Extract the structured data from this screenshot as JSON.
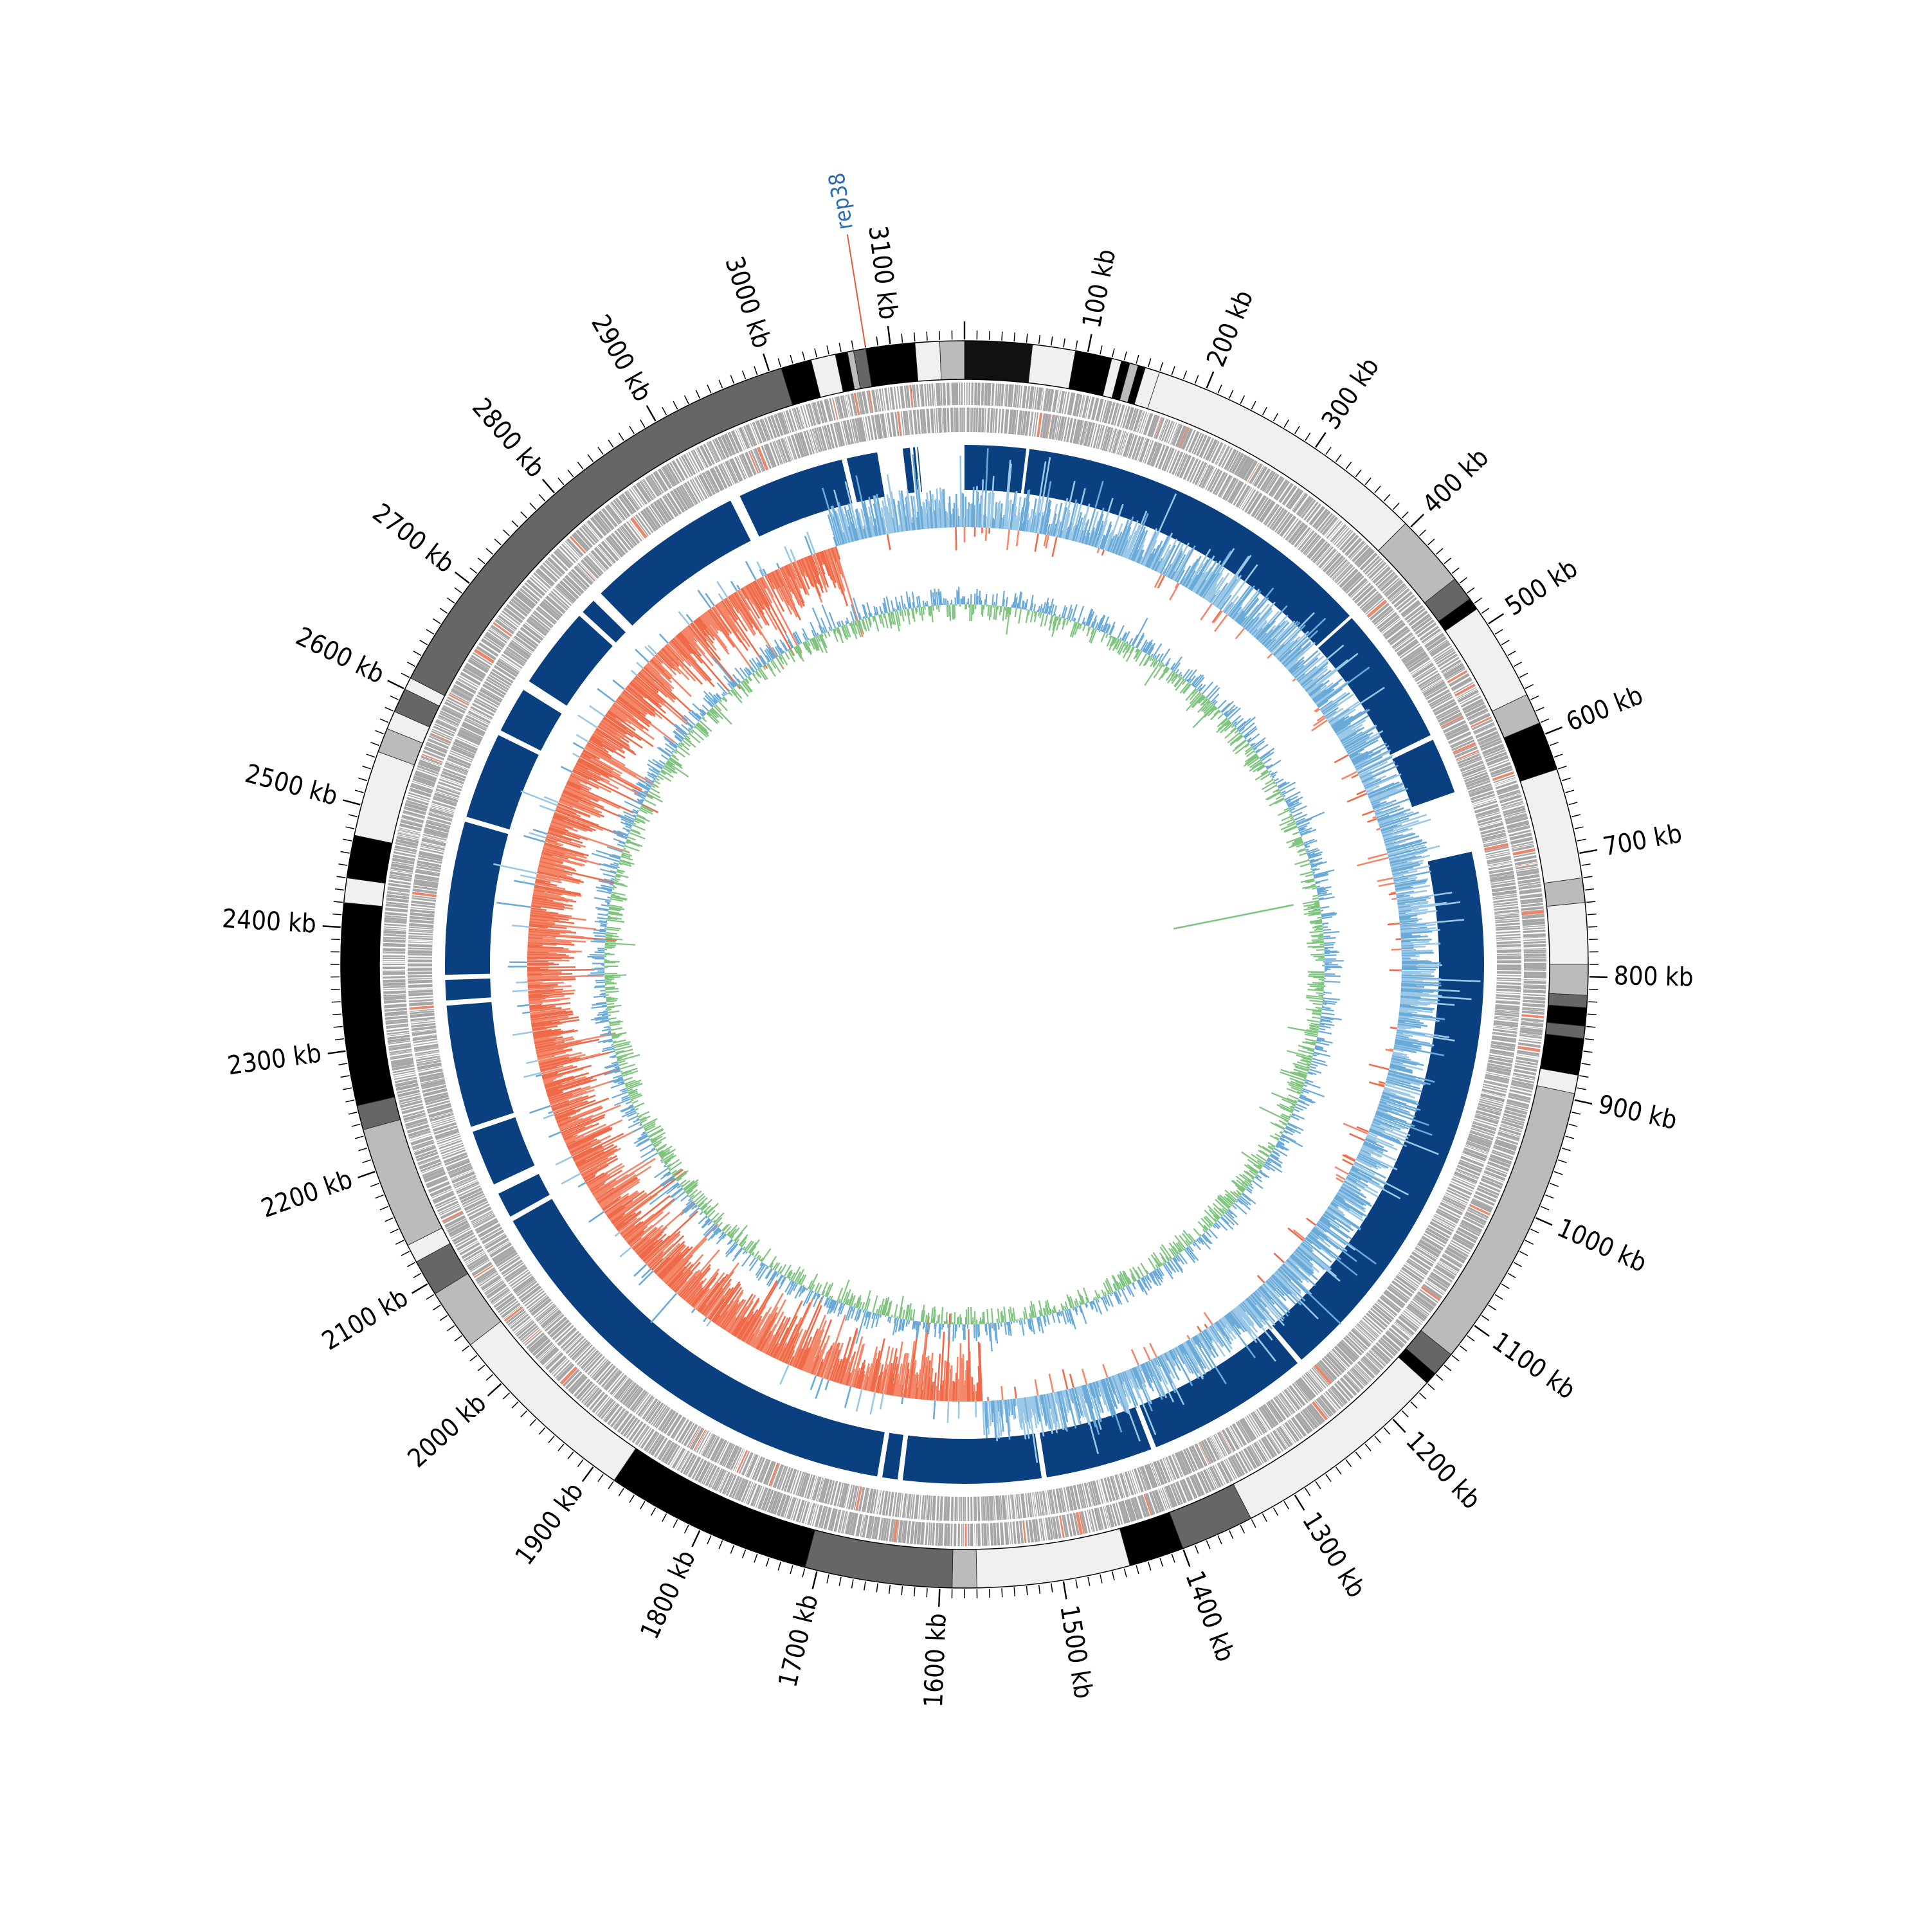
{
  "genome": {
    "length_kb": 3160,
    "tick_labels": [
      "100 kb",
      "200 kb",
      "300 kb",
      "400 kb",
      "500 kb",
      "600 kb",
      "700 kb",
      "800 kb",
      "900 kb",
      "1000 kb",
      "1100 kb",
      "1200 kb",
      "1300 kb",
      "1400 kb",
      "1500 kb",
      "1600 kb",
      "1700 kb",
      "1800 kb",
      "1900 kb",
      "2000 kb",
      "2100 kb",
      "2200 kb",
      "2300 kb",
      "2400 kb",
      "2500 kb",
      "2600 kb",
      "2700 kb",
      "2800 kb",
      "2900 kb",
      "3000 kb",
      "3100 kb"
    ],
    "tick_values_kb": [
      100,
      200,
      300,
      400,
      500,
      600,
      700,
      800,
      900,
      1000,
      1100,
      1200,
      1300,
      1400,
      1500,
      1600,
      1700,
      1800,
      1900,
      2000,
      2100,
      2200,
      2300,
      2400,
      2500,
      2600,
      2700,
      2800,
      2900,
      3000,
      3100
    ]
  },
  "annotation": {
    "label": "rep38",
    "position_kb": 3080,
    "label_color": "#2b6cb0",
    "line_color": "#e8573a"
  },
  "tracks": {
    "contigs": {
      "description_values": "segment start/end in kb with grey level",
      "segments": [
        {
          "start": 0,
          "end": 55,
          "shade": "#111111"
        },
        {
          "start": 55,
          "end": 90,
          "shade": "#f0f0f0"
        },
        {
          "start": 90,
          "end": 120,
          "shade": "#000000"
        },
        {
          "start": 120,
          "end": 128,
          "shade": "#f0f0f0"
        },
        {
          "start": 128,
          "end": 135,
          "shade": "#000000"
        },
        {
          "start": 135,
          "end": 142,
          "shade": "#bbbbbb"
        },
        {
          "start": 142,
          "end": 148,
          "shade": "#000000"
        },
        {
          "start": 148,
          "end": 160,
          "shade": "#f0f0f0"
        },
        {
          "start": 160,
          "end": 395,
          "shade": "#f0f0f0"
        },
        {
          "start": 395,
          "end": 455,
          "shade": "#bbbbbb"
        },
        {
          "start": 455,
          "end": 475,
          "shade": "#666666"
        },
        {
          "start": 475,
          "end": 485,
          "shade": "#000000"
        },
        {
          "start": 485,
          "end": 565,
          "shade": "#f0f0f0"
        },
        {
          "start": 565,
          "end": 590,
          "shade": "#bbbbbb"
        },
        {
          "start": 590,
          "end": 630,
          "shade": "#000000"
        },
        {
          "start": 630,
          "end": 720,
          "shade": "#f0f0f0"
        },
        {
          "start": 720,
          "end": 740,
          "shade": "#bbbbbb"
        },
        {
          "start": 740,
          "end": 790,
          "shade": "#f0f0f0"
        },
        {
          "start": 790,
          "end": 815,
          "shade": "#bbbbbb"
        },
        {
          "start": 815,
          "end": 825,
          "shade": "#666666"
        },
        {
          "start": 825,
          "end": 840,
          "shade": "#000000"
        },
        {
          "start": 840,
          "end": 850,
          "shade": "#666666"
        },
        {
          "start": 850,
          "end": 880,
          "shade": "#000000"
        },
        {
          "start": 880,
          "end": 895,
          "shade": "#f0f0f0"
        },
        {
          "start": 895,
          "end": 1130,
          "shade": "#bbbbbb"
        },
        {
          "start": 1130,
          "end": 1150,
          "shade": "#666666"
        },
        {
          "start": 1150,
          "end": 1160,
          "shade": "#000000"
        },
        {
          "start": 1160,
          "end": 1340,
          "shade": "#f0f0f0"
        },
        {
          "start": 1340,
          "end": 1400,
          "shade": "#666666"
        },
        {
          "start": 1400,
          "end": 1445,
          "shade": "#000000"
        },
        {
          "start": 1445,
          "end": 1570,
          "shade": "#f0f0f0"
        },
        {
          "start": 1570,
          "end": 1590,
          "shade": "#bbbbbb"
        },
        {
          "start": 1590,
          "end": 1710,
          "shade": "#666666"
        },
        {
          "start": 1710,
          "end": 1880,
          "shade": "#000000"
        },
        {
          "start": 1880,
          "end": 2040,
          "shade": "#f0f0f0"
        },
        {
          "start": 2040,
          "end": 2090,
          "shade": "#bbbbbb"
        },
        {
          "start": 2090,
          "end": 2120,
          "shade": "#666666"
        },
        {
          "start": 2120,
          "end": 2135,
          "shade": "#f0f0f0"
        },
        {
          "start": 2135,
          "end": 2235,
          "shade": "#bbbbbb"
        },
        {
          "start": 2235,
          "end": 2255,
          "shade": "#666666"
        },
        {
          "start": 2255,
          "end": 2420,
          "shade": "#000000"
        },
        {
          "start": 2420,
          "end": 2440,
          "shade": "#f0f0f0"
        },
        {
          "start": 2440,
          "end": 2475,
          "shade": "#000000"
        },
        {
          "start": 2475,
          "end": 2545,
          "shade": "#f0f0f0"
        },
        {
          "start": 2545,
          "end": 2565,
          "shade": "#bbbbbb"
        },
        {
          "start": 2565,
          "end": 2580,
          "shade": "#f0f0f0"
        },
        {
          "start": 2580,
          "end": 2600,
          "shade": "#666666"
        },
        {
          "start": 2600,
          "end": 2610,
          "shade": "#f0f0f0"
        },
        {
          "start": 2610,
          "end": 3010,
          "shade": "#666666"
        },
        {
          "start": 3010,
          "end": 3035,
          "shade": "#000000"
        },
        {
          "start": 3035,
          "end": 3055,
          "shade": "#f0f0f0"
        },
        {
          "start": 3055,
          "end": 3065,
          "shade": "#000000"
        },
        {
          "start": 3065,
          "end": 3070,
          "shade": "#bbbbbb"
        },
        {
          "start": 3070,
          "end": 3080,
          "shade": "#666666"
        },
        {
          "start": 3080,
          "end": 3120,
          "shade": "#000000"
        },
        {
          "start": 3120,
          "end": 3140,
          "shade": "#f0f0f0"
        },
        {
          "start": 3140,
          "end": 3160,
          "shade": "#bbbbbb"
        }
      ]
    },
    "homology_blocks": {
      "color": "#0a3f80",
      "segments": [
        {
          "start": 3100,
          "end": 3107
        },
        {
          "start": 3110,
          "end": 3112
        },
        {
          "start": 3114,
          "end": 3115
        },
        {
          "start": 0,
          "end": 60
        },
        {
          "start": 63,
          "end": 420
        },
        {
          "start": 423,
          "end": 560
        },
        {
          "start": 565,
          "end": 620
        },
        {
          "start": 680,
          "end": 1225
        },
        {
          "start": 1230,
          "end": 1390
        },
        {
          "start": 1395,
          "end": 1500
        },
        {
          "start": 1505,
          "end": 1640
        },
        {
          "start": 1645,
          "end": 1660
        },
        {
          "start": 1665,
          "end": 2110
        },
        {
          "start": 2115,
          "end": 2140
        },
        {
          "start": 2150,
          "end": 2205
        },
        {
          "start": 2210,
          "end": 2330
        },
        {
          "start": 2335,
          "end": 2355
        },
        {
          "start": 2360,
          "end": 2510
        },
        {
          "start": 2515,
          "end": 2600
        },
        {
          "start": 2605,
          "end": 2650
        },
        {
          "start": 2660,
          "end": 2740
        },
        {
          "start": 2745,
          "end": 2760
        },
        {
          "start": 2770,
          "end": 2925
        },
        {
          "start": 2935,
          "end": 3040
        },
        {
          "start": 3045,
          "end": 3075
        }
      ]
    },
    "gc_skew_colors": {
      "positive": "#9ac8e6",
      "negative": "#f4866a",
      "line_pos": "#6aaad8",
      "line_neg": "#ee6a48",
      "spike": "#000000"
    },
    "gc_content_colors": {
      "positive": "#7fc47f",
      "negative": "#6aaad8"
    },
    "gene_color": "#a6a6a6",
    "gene_highlight_color": "#e8876c"
  }
}
